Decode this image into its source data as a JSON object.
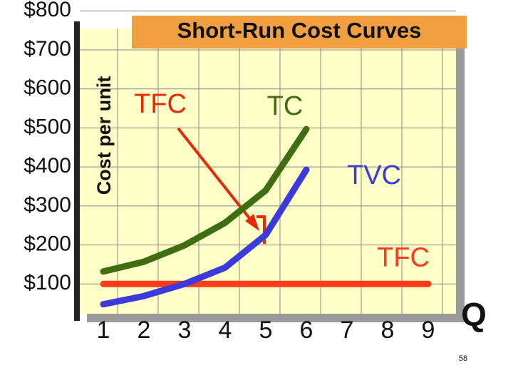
{
  "chart_data": {
    "type": "line",
    "title": "Short-Run Cost Curves",
    "y_label": "Cost per unit",
    "x_label": "Q",
    "page_number": "58",
    "categories": [
      "1",
      "2",
      "3",
      "4",
      "5",
      "6",
      "7",
      "8",
      "9"
    ],
    "ylim": [
      0,
      800
    ],
    "yticks": [
      {
        "value": 800,
        "label": "$800"
      },
      {
        "value": 700,
        "label": "$700"
      },
      {
        "value": 600,
        "label": "$600"
      },
      {
        "value": 500,
        "label": "$500"
      },
      {
        "value": 400,
        "label": "$400"
      },
      {
        "value": 300,
        "label": "$300"
      },
      {
        "value": 200,
        "label": "$200"
      },
      {
        "value": 100,
        "label": "$100"
      }
    ],
    "grid": true,
    "series": [
      {
        "name": "TFC",
        "color": "#ff3b1a",
        "values": [
          100,
          100,
          100,
          100,
          100,
          100,
          100,
          100,
          100
        ]
      },
      {
        "name": "TC",
        "color": "#3f6e12",
        "values": [
          132,
          157,
          199,
          257,
          340,
          497,
          null,
          null,
          null
        ]
      },
      {
        "name": "TVC",
        "color": "#3b3bdc",
        "values": [
          48,
          69,
          100,
          142,
          226,
          393,
          null,
          null,
          null
        ]
      }
    ],
    "annotations": [
      {
        "text": "TFC"
      }
    ]
  }
}
